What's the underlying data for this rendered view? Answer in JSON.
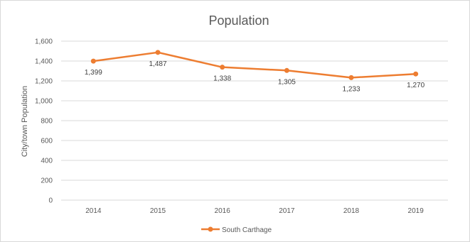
{
  "chart_data": {
    "type": "line",
    "title": "Population",
    "xlabel": "",
    "ylabel": "City/town Population",
    "categories": [
      "2014",
      "2015",
      "2016",
      "2017",
      "2018",
      "2019"
    ],
    "series": [
      {
        "name": "South Carthage",
        "values": [
          1399,
          1487,
          1338,
          1305,
          1233,
          1270
        ],
        "color": "#ED7D31"
      }
    ],
    "data_labels": [
      "1,399",
      "1,487",
      "1,338",
      "1,305",
      "1,233",
      "1,270"
    ],
    "ylim": [
      0,
      1600
    ],
    "yticks": [
      0,
      200,
      400,
      600,
      800,
      1000,
      1200,
      1400,
      1600
    ],
    "ytick_labels": [
      "0",
      "200",
      "400",
      "600",
      "800",
      "1,000",
      "1,200",
      "1,400",
      "1,600"
    ],
    "grid": true,
    "legend_position": "bottom",
    "colors": {
      "line": "#ED7D31",
      "grid": "#d9d9d9",
      "text": "#595959"
    }
  }
}
